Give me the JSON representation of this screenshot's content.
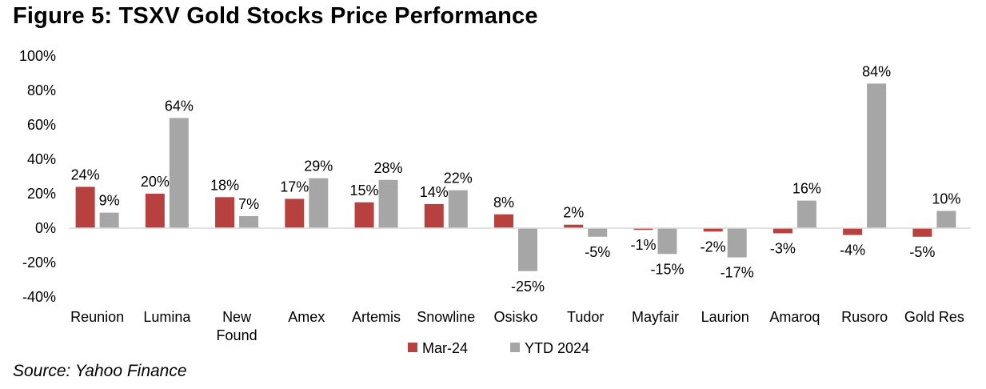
{
  "figure": {
    "title": "Figure 5: TSXV Gold Stocks Price Performance",
    "source": "Source: Yahoo Finance"
  },
  "chart_data": {
    "type": "bar",
    "title": "Figure 5: TSXV Gold Stocks Price Performance",
    "xlabel": "",
    "ylabel": "",
    "ylim": [
      -40,
      100
    ],
    "yticks": [
      -40,
      -20,
      0,
      20,
      40,
      60,
      80,
      100
    ],
    "ytick_labels": [
      "-40%",
      "-20%",
      "0%",
      "20%",
      "40%",
      "60%",
      "80%",
      "100%"
    ],
    "value_suffix": "%",
    "grid": false,
    "legend_position": "bottom-center",
    "categories": [
      [
        "Reunion"
      ],
      [
        "Lumina"
      ],
      [
        "New",
        "Found"
      ],
      [
        "Amex"
      ],
      [
        "Artemis"
      ],
      [
        "Snowline"
      ],
      [
        "Osisko"
      ],
      [
        "Tudor"
      ],
      [
        "Mayfair"
      ],
      [
        "Laurion"
      ],
      [
        "Amaroq"
      ],
      [
        "Rusoro"
      ],
      [
        "Gold Res"
      ]
    ],
    "series": [
      {
        "name": "Mar-24",
        "color": "#b7413e",
        "values": [
          24,
          20,
          18,
          17,
          15,
          14,
          8,
          2,
          -1,
          -2,
          -3,
          -4,
          -5
        ]
      },
      {
        "name": "YTD 2024",
        "color": "#a6a6a6",
        "values": [
          9,
          64,
          7,
          29,
          28,
          22,
          -25,
          -5,
          -15,
          -17,
          16,
          84,
          10
        ]
      }
    ]
  }
}
